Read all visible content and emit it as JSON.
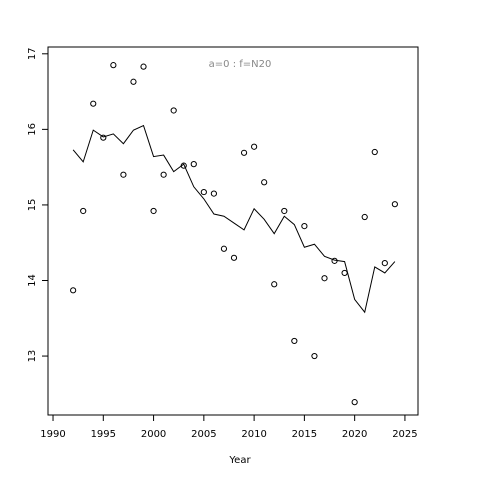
{
  "chart_data": {
    "type": "scatter",
    "annotation": "a=0  :  f=N20",
    "x_label": "Year",
    "x": [
      1992,
      1993,
      1994,
      1995,
      1996,
      1997,
      1998,
      1999,
      2000,
      2001,
      2002,
      2003,
      2004,
      2005,
      2006,
      2007,
      2008,
      2009,
      2010,
      2011,
      2012,
      2013,
      2014,
      2015,
      2016,
      2017,
      2018,
      2019,
      2020,
      2021,
      2022,
      2023,
      2024
    ],
    "series": [
      {
        "kind": "points",
        "color": "#000000",
        "values": [
          13.87,
          14.92,
          16.34,
          15.89,
          16.85,
          15.4,
          16.63,
          16.83,
          14.92,
          15.4,
          16.25,
          15.52,
          15.54,
          15.17,
          15.15,
          14.42,
          14.3,
          15.69,
          15.77,
          15.3,
          13.95,
          14.92,
          13.2,
          14.72,
          13.0,
          14.03,
          14.26,
          14.1,
          12.39,
          14.84,
          15.7,
          14.23,
          15.01
        ]
      },
      {
        "kind": "line",
        "color": "#000000",
        "values": [
          15.73,
          15.57,
          15.99,
          15.9,
          15.94,
          15.81,
          15.99,
          16.05,
          15.64,
          15.66,
          15.44,
          15.54,
          15.24,
          15.08,
          14.88,
          14.85,
          14.76,
          14.67,
          14.95,
          14.81,
          14.62,
          14.85,
          14.74,
          14.44,
          14.48,
          14.32,
          14.27,
          14.25,
          13.75,
          13.58,
          14.18,
          14.1,
          14.25
        ]
      }
    ],
    "xlim": [
      1989.5,
      2026.3
    ],
    "xticks": [
      1990,
      1995,
      2000,
      2005,
      2010,
      2015,
      2020,
      2025
    ],
    "ylim": [
      12.22,
      17.09
    ],
    "yticks": [
      13,
      14,
      15,
      16,
      17
    ]
  }
}
